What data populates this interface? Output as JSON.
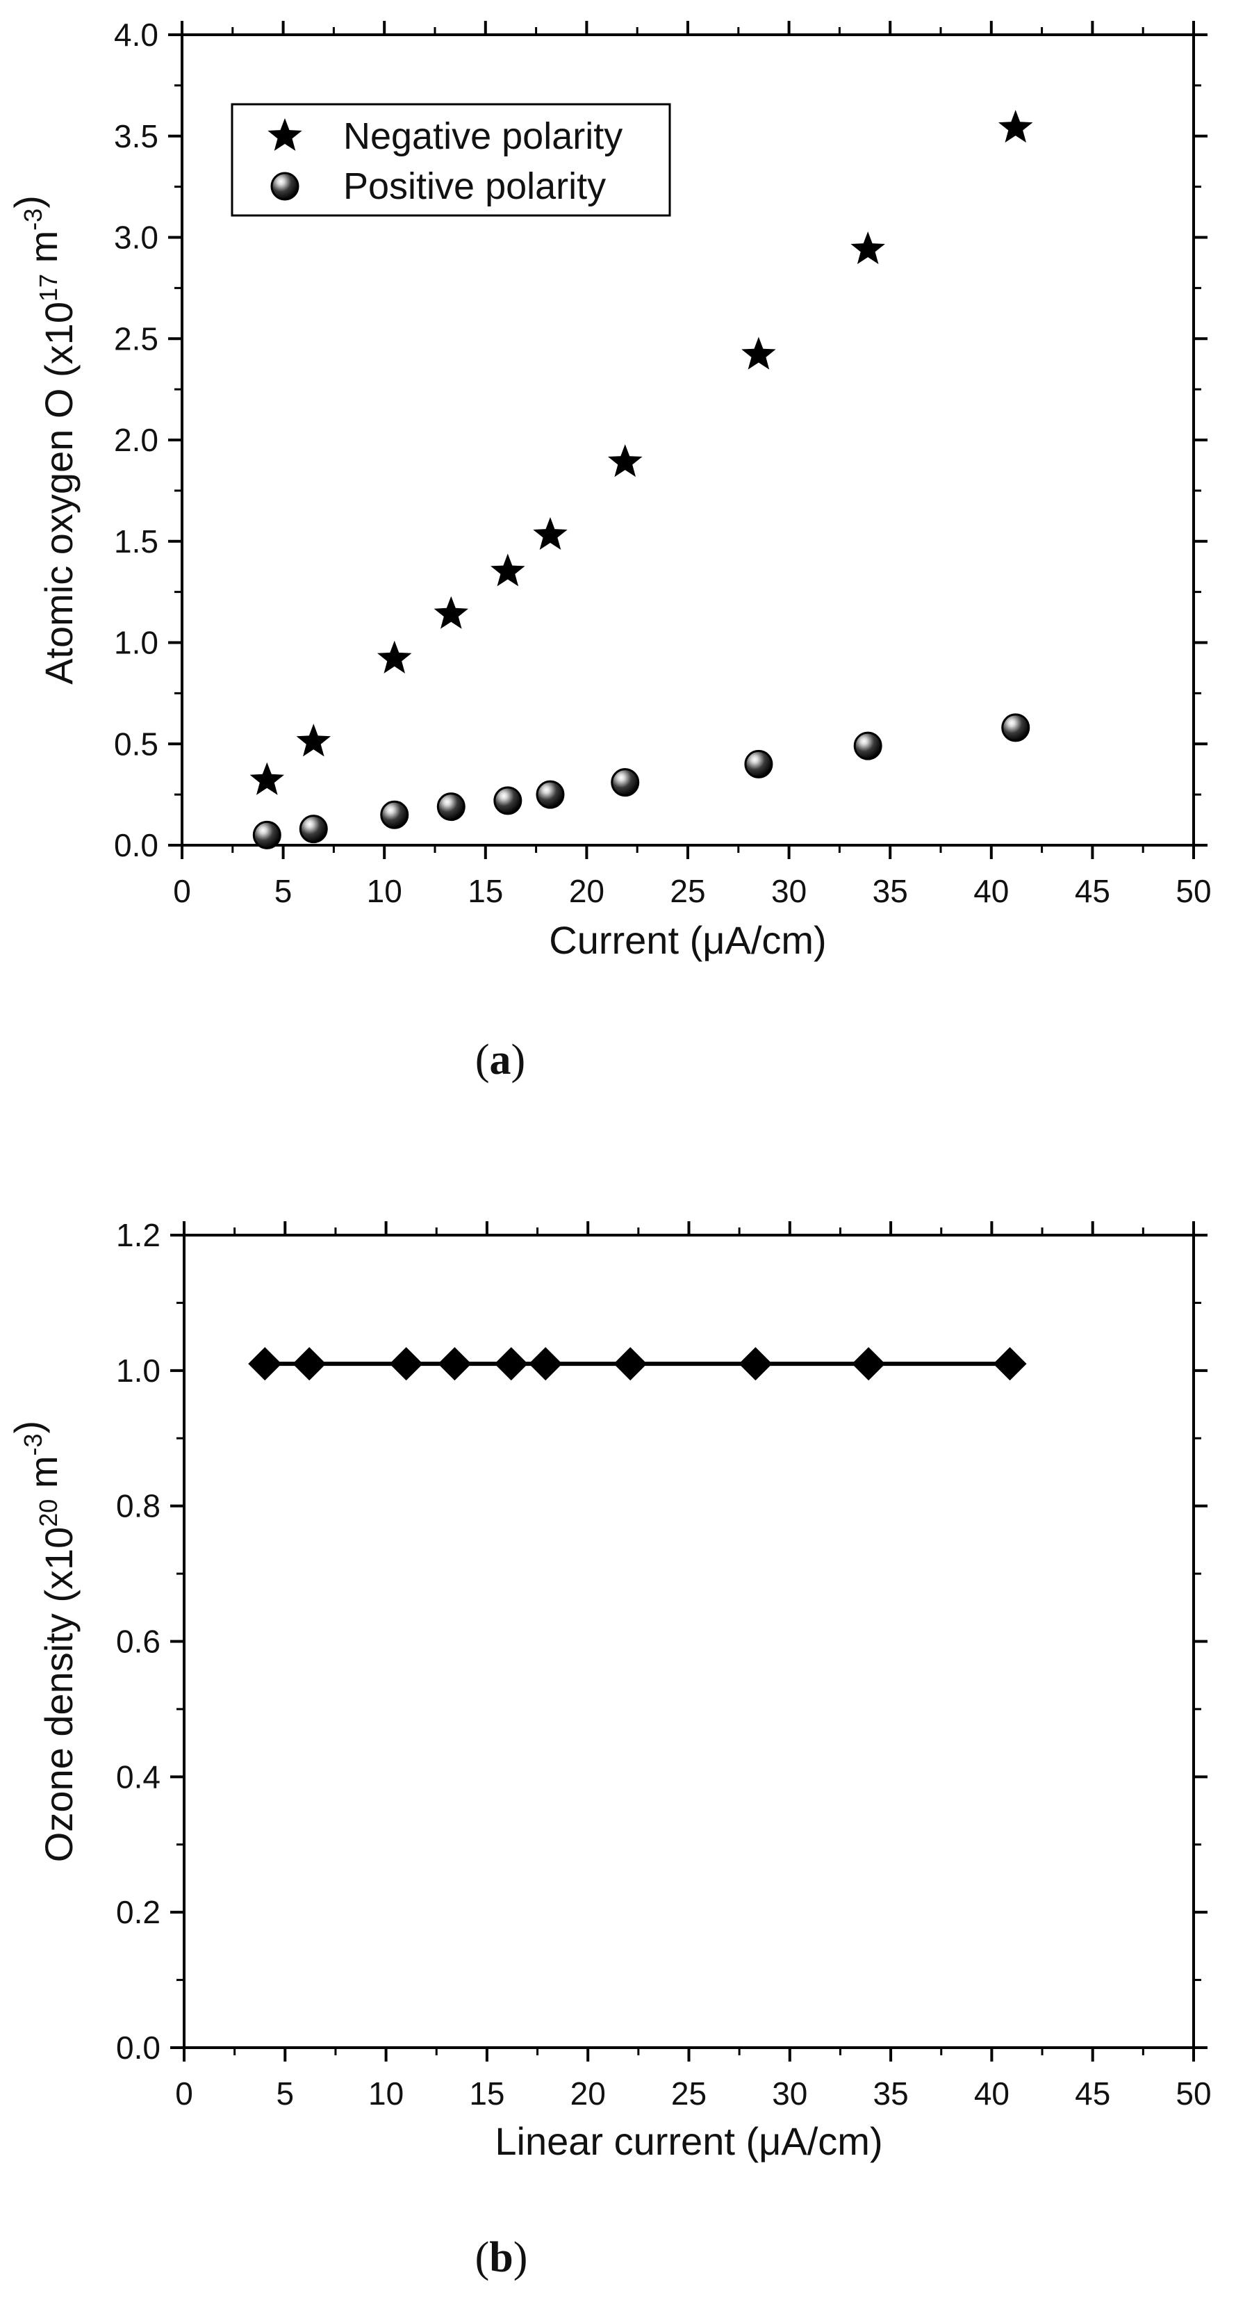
{
  "chart_data": [
    {
      "type": "scatter",
      "panel_label": "(a)",
      "panel_letter": "a",
      "xlabel": "Current (μA/cm)",
      "ylabel": {
        "prefix": "Atomic oxygen O (x10",
        "exp": "17",
        "mid": " m",
        "exp2": "-3",
        "suffix": ")"
      },
      "xlim": [
        0,
        50
      ],
      "ylim": [
        0,
        4.0
      ],
      "xticks": [
        0,
        5,
        10,
        15,
        20,
        25,
        30,
        35,
        40,
        45,
        50
      ],
      "yticks": [
        0.0,
        0.5,
        1.0,
        1.5,
        2.0,
        2.5,
        3.0,
        3.5,
        4.0
      ],
      "xtick_labels": [
        "0",
        "5",
        "10",
        "15",
        "20",
        "25",
        "30",
        "35",
        "40",
        "45",
        "50"
      ],
      "ytick_labels": [
        "0.0",
        "0.5",
        "1.0",
        "1.5",
        "2.0",
        "2.5",
        "3.0",
        "3.5",
        "4.0"
      ],
      "legend_position": "top-left",
      "series": [
        {
          "name": "Negative polarity",
          "marker": "star",
          "x": [
            4.2,
            6.5,
            10.5,
            13.3,
            16.1,
            18.2,
            21.9,
            28.5,
            33.9,
            41.2
          ],
          "y": [
            0.32,
            0.51,
            0.92,
            1.14,
            1.35,
            1.53,
            1.89,
            2.42,
            2.94,
            3.54
          ]
        },
        {
          "name": "Positive polarity",
          "marker": "sphere",
          "x": [
            4.2,
            6.5,
            10.5,
            13.3,
            16.1,
            18.2,
            21.9,
            28.5,
            33.9,
            41.2
          ],
          "y": [
            0.05,
            0.08,
            0.15,
            0.19,
            0.22,
            0.25,
            0.31,
            0.4,
            0.49,
            0.58
          ]
        }
      ]
    },
    {
      "type": "line",
      "panel_label": "(b)",
      "panel_letter": "b",
      "xlabel": "Linear current (μA/cm)",
      "ylabel": {
        "prefix": "Ozone density (x10",
        "exp": "20",
        "mid": " m",
        "exp2": "-3",
        "suffix": ")"
      },
      "xlim": [
        0,
        50
      ],
      "ylim": [
        0,
        1.2
      ],
      "xticks": [
        0,
        5,
        10,
        15,
        20,
        25,
        30,
        35,
        40,
        45,
        50
      ],
      "yticks": [
        0.0,
        0.2,
        0.4,
        0.6,
        0.8,
        1.0,
        1.2
      ],
      "xtick_labels": [
        "0",
        "5",
        "10",
        "15",
        "20",
        "25",
        "30",
        "35",
        "40",
        "45",
        "50"
      ],
      "ytick_labels": [
        "0.0",
        "0.2",
        "0.4",
        "0.6",
        "0.8",
        "1.0",
        "1.2"
      ],
      "series": [
        {
          "name": "Ozone density",
          "marker": "diamond",
          "x": [
            4.0,
            6.2,
            11.0,
            13.4,
            16.2,
            17.9,
            22.1,
            28.3,
            33.9,
            40.9
          ],
          "y": [
            1.01,
            1.01,
            1.01,
            1.01,
            1.01,
            1.01,
            1.01,
            1.01,
            1.01,
            1.01
          ]
        }
      ]
    }
  ]
}
